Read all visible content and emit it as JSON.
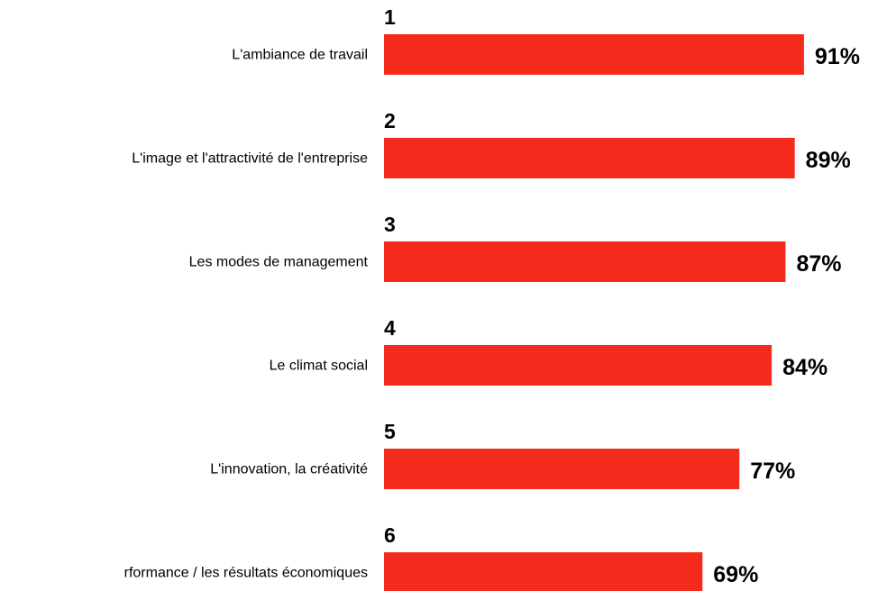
{
  "chart_data": {
    "type": "bar",
    "orientation": "horizontal",
    "categories": [
      "L'ambiance de travail",
      "L'image et l'attractivité de l'entreprise",
      "Les modes de management",
      "Le climat social",
      "L'innovation, la créativité",
      "rformance / les résultats économiques"
    ],
    "ranks": [
      1,
      2,
      3,
      4,
      5,
      6
    ],
    "values": [
      91,
      89,
      87,
      84,
      77,
      69
    ],
    "value_labels": [
      "91%",
      "89%",
      "87%",
      "84%",
      "77%",
      "69%"
    ],
    "color": "#f42a1d"
  }
}
